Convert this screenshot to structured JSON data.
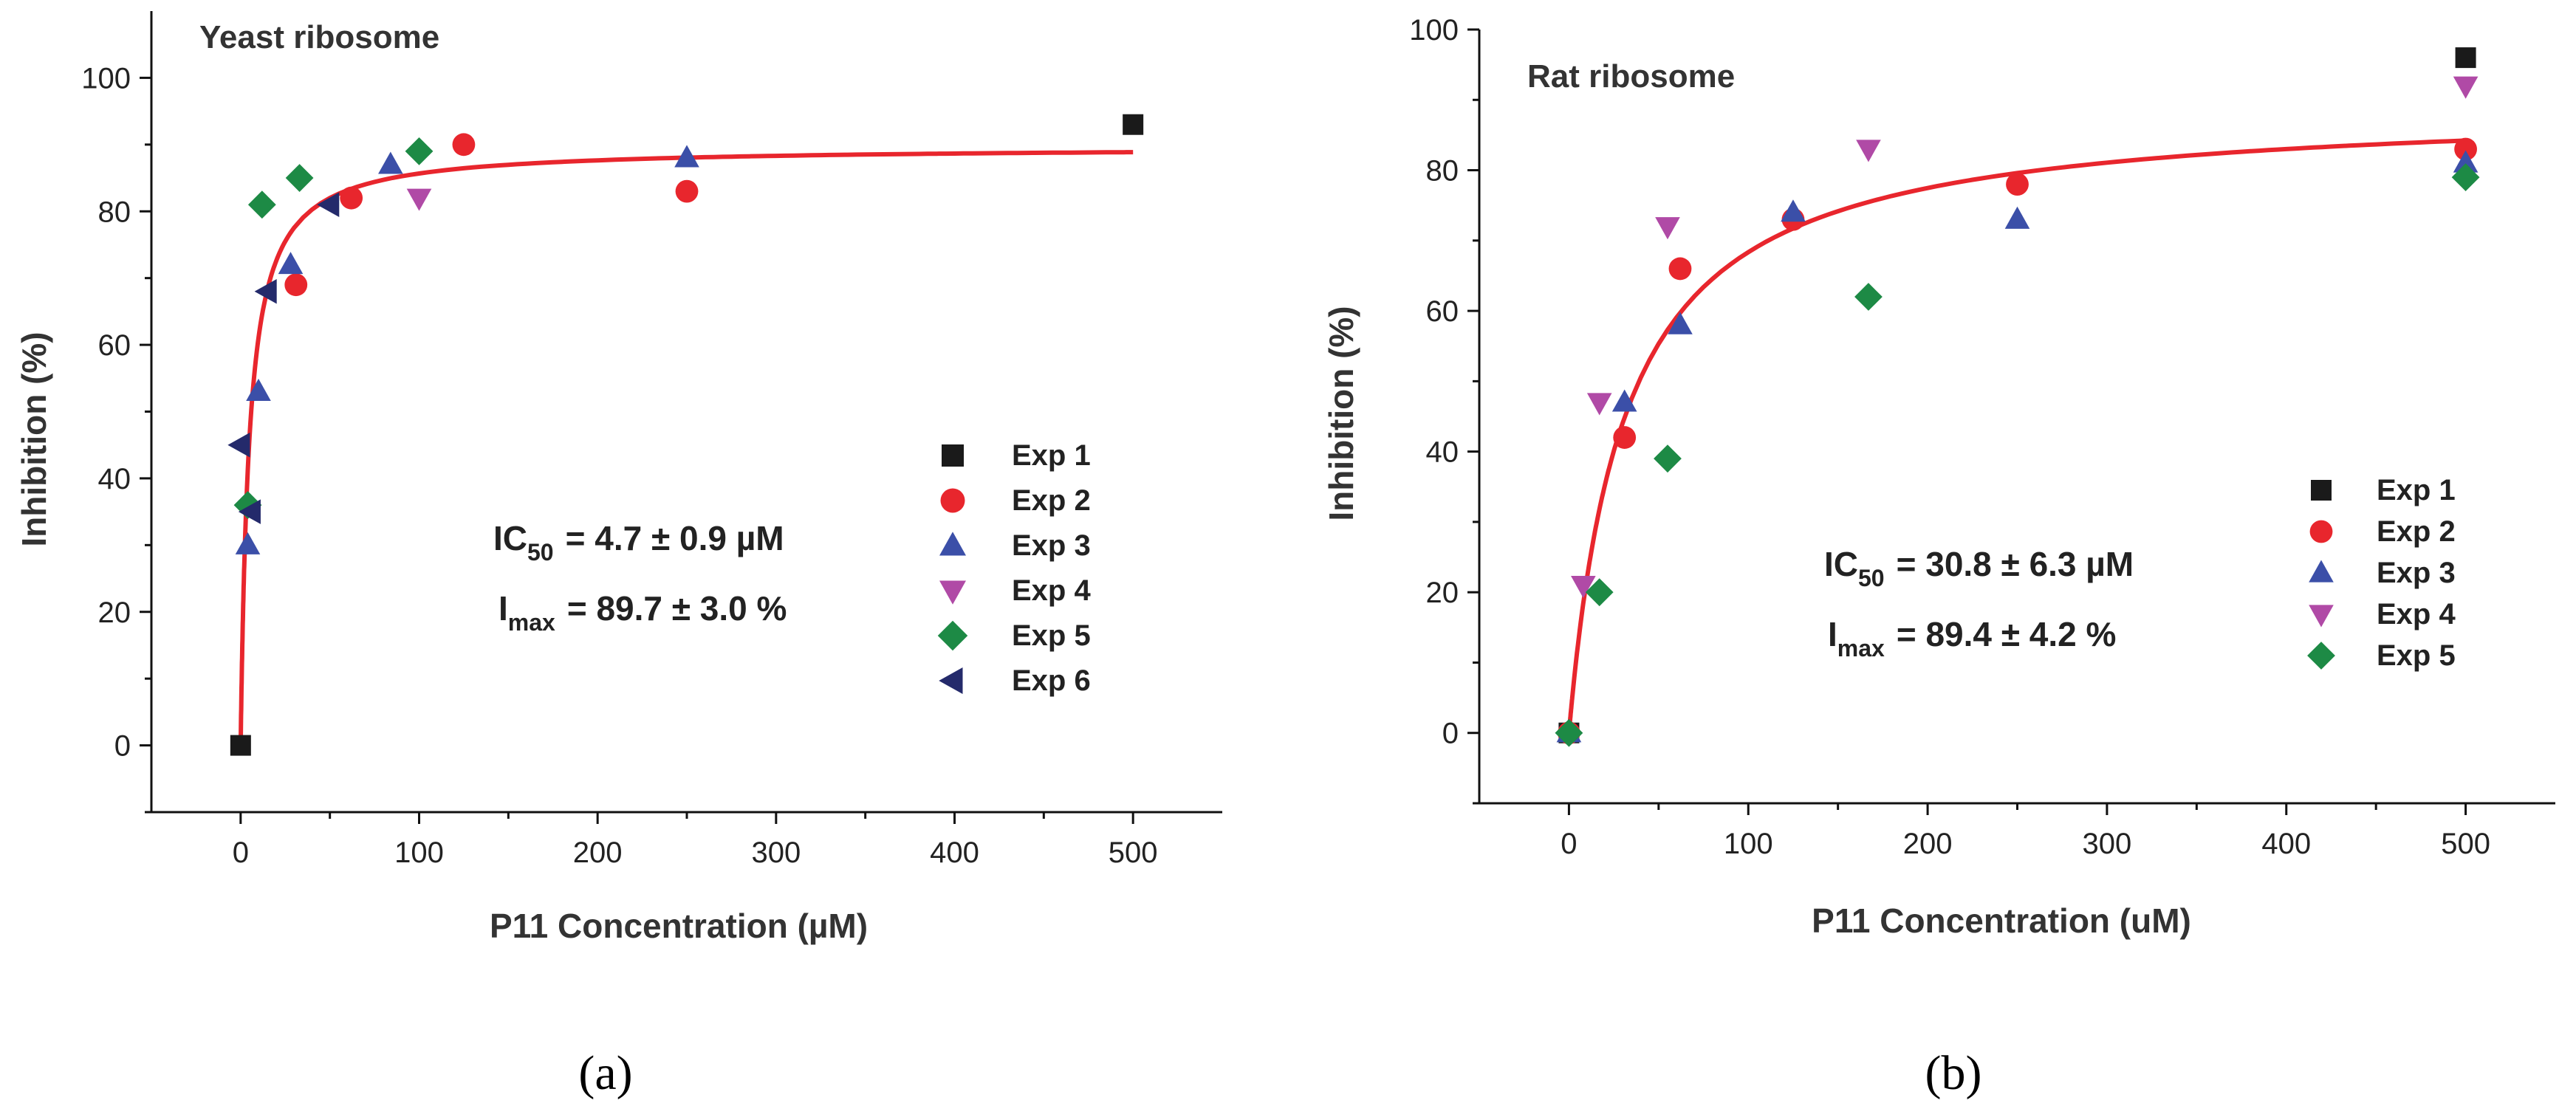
{
  "chart_data": [
    {
      "type": "scatter",
      "panel_label": "(a)",
      "title": "Yeast ribosome",
      "xlabel": "P11 Concentration (µM)",
      "ylabel": "Inhibition (%)",
      "xlim": [
        -50,
        550
      ],
      "ylim": [
        -10,
        110
      ],
      "xticks": [
        0,
        100,
        200,
        300,
        400,
        500
      ],
      "yticks": [
        0,
        20,
        40,
        60,
        80,
        100
      ],
      "annotation": {
        "ic50_label": "IC",
        "ic50_sub": "50",
        "ic50_value": "= 4.7 ± 0.9 µM",
        "imax_label": "I",
        "imax_sub": "max",
        "imax_value": "= 89.7 ± 3.0 %"
      },
      "fit": {
        "model": "Imax*x/(IC50+x)",
        "IC50": 4.7,
        "Imax": 89.7,
        "color": "#e8262d"
      },
      "series": [
        {
          "name": "Exp 1",
          "marker": "square",
          "color": "#1a1a1a",
          "points": [
            [
              0,
              0
            ],
            [
              500,
              93
            ]
          ]
        },
        {
          "name": "Exp 2",
          "marker": "circle",
          "color": "#e8262d",
          "points": [
            [
              31,
              69
            ],
            [
              62,
              82
            ],
            [
              125,
              90
            ],
            [
              250,
              83
            ]
          ]
        },
        {
          "name": "Exp 3",
          "marker": "triangle-up",
          "color": "#3b4fa8",
          "points": [
            [
              4,
              30
            ],
            [
              10,
              53
            ],
            [
              28,
              72
            ],
            [
              84,
              87
            ],
            [
              250,
              88
            ]
          ]
        },
        {
          "name": "Exp 4",
          "marker": "triangle-down",
          "color": "#b04aa6",
          "points": [
            [
              100,
              82
            ]
          ]
        },
        {
          "name": "Exp 5",
          "marker": "diamond",
          "color": "#1d8a45",
          "points": [
            [
              4,
              36
            ],
            [
              12,
              81
            ],
            [
              33,
              85
            ],
            [
              100,
              89
            ]
          ]
        },
        {
          "name": "Exp 6",
          "marker": "triangle-left",
          "color": "#242a6b",
          "points": [
            [
              0,
              45
            ],
            [
              6,
              35
            ],
            [
              15,
              68
            ],
            [
              50,
              81
            ]
          ]
        }
      ]
    },
    {
      "type": "scatter",
      "panel_label": "(b)",
      "title": "Rat ribosome",
      "xlabel": "P11 Concentration (uM)",
      "ylabel": "Inhibition (%)",
      "xlim": [
        -50,
        550
      ],
      "ylim": [
        -10,
        100
      ],
      "xticks": [
        0,
        100,
        200,
        300,
        400,
        500
      ],
      "yticks": [
        0,
        20,
        40,
        60,
        80,
        100
      ],
      "annotation": {
        "ic50_label": "IC",
        "ic50_sub": "50",
        "ic50_value": "= 30.8 ± 6.3 µM",
        "imax_label": "I",
        "imax_sub": "max",
        "imax_value": "= 89.4 ± 4.2 %"
      },
      "fit": {
        "model": "Imax*x/(IC50+x)",
        "IC50": 30.8,
        "Imax": 89.4,
        "color": "#e8262d"
      },
      "series": [
        {
          "name": "Exp 1",
          "marker": "square",
          "color": "#1a1a1a",
          "points": [
            [
              0,
              0
            ],
            [
              500,
              96
            ]
          ]
        },
        {
          "name": "Exp 2",
          "marker": "circle",
          "color": "#e8262d",
          "points": [
            [
              0,
              0
            ],
            [
              31,
              42
            ],
            [
              62,
              66
            ],
            [
              125,
              73
            ],
            [
              250,
              78
            ],
            [
              500,
              83
            ]
          ]
        },
        {
          "name": "Exp 3",
          "marker": "triangle-up",
          "color": "#3b4fa8",
          "points": [
            [
              0,
              0
            ],
            [
              31,
              47
            ],
            [
              62,
              58
            ],
            [
              125,
              74
            ],
            [
              250,
              73
            ],
            [
              500,
              81
            ]
          ]
        },
        {
          "name": "Exp 4",
          "marker": "triangle-down",
          "color": "#b04aa6",
          "points": [
            [
              8,
              21
            ],
            [
              17,
              47
            ],
            [
              55,
              72
            ],
            [
              167,
              83
            ],
            [
              500,
              92
            ]
          ]
        },
        {
          "name": "Exp 5",
          "marker": "diamond",
          "color": "#1d8a45",
          "points": [
            [
              0,
              0
            ],
            [
              17,
              20
            ],
            [
              55,
              39
            ],
            [
              167,
              62
            ],
            [
              500,
              79
            ]
          ]
        }
      ]
    }
  ]
}
